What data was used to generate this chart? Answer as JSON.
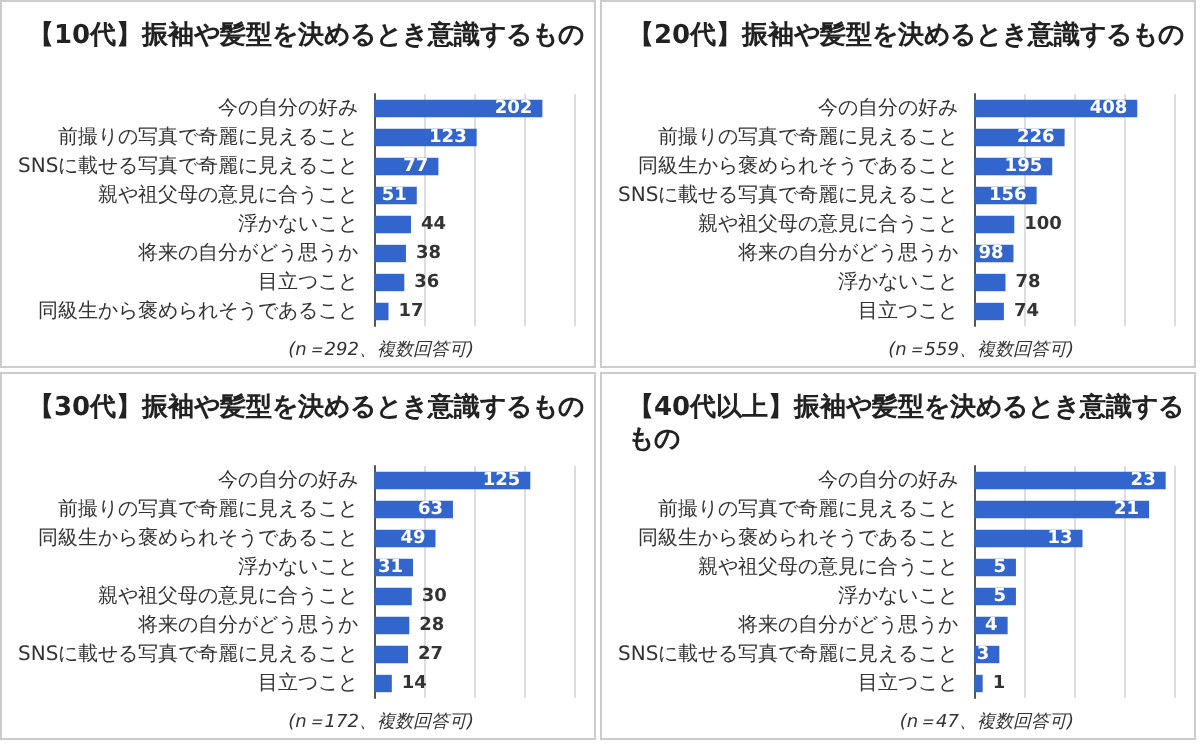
{
  "chart_data": [
    {
      "type": "bar",
      "orientation": "horizontal",
      "title": "【10代】振袖や髪型を決めるとき意識するもの",
      "categories": [
        "今の自分の好み",
        "前撮りの写真で奇麗に見えること",
        "SNSに載せる写真で奇麗に見えること",
        "親や祖父母の意見に合うこと",
        "浮かないこと",
        "将来の自分がどう思うか",
        "目立つこと",
        "同級生から褒められそうであること"
      ],
      "values": [
        202,
        123,
        77,
        51,
        44,
        38,
        36,
        17
      ],
      "color": "#3366cc",
      "xlim": [
        0,
        240
      ],
      "xticks": [
        0,
        60,
        120,
        180,
        240
      ],
      "grid": "x",
      "tick_labels": "y",
      "data_labels": true,
      "annotations": [
        "(n＝292、複数回答可)"
      ]
    },
    {
      "type": "bar",
      "orientation": "horizontal",
      "title": "【20代】振袖や髪型を決めるとき意識するもの",
      "categories": [
        "今の自分の好み",
        "前撮りの写真で奇麗に見えること",
        "同級生から褒められそうであること",
        "SNSに載せる写真で奇麗に見えること",
        "親や祖父母の意見に合うこと",
        "将来の自分がどう思うか",
        "浮かないこと",
        "目立つこと"
      ],
      "values": [
        408,
        226,
        195,
        156,
        100,
        98,
        78,
        74
      ],
      "color": "#3366cc",
      "xlim": [
        0,
        500
      ],
      "xticks": [
        0,
        125,
        250,
        375,
        500
      ],
      "grid": "x",
      "tick_labels": "y",
      "data_labels": true,
      "annotations": [
        "(n＝559、複数回答可)"
      ]
    },
    {
      "type": "bar",
      "orientation": "horizontal",
      "title": "【30代】振袖や髪型を決めるとき意識するもの",
      "categories": [
        "今の自分の好み",
        "前撮りの写真で奇麗に見えること",
        "同級生から褒められそうであること",
        "浮かないこと",
        "親や祖父母の意見に合うこと",
        "将来の自分がどう思うか",
        "SNSに載せる写真で奇麗に見えること",
        "目立つこと"
      ],
      "values": [
        125,
        63,
        49,
        31,
        30,
        28,
        27,
        14
      ],
      "color": "#3366cc",
      "xlim": [
        0,
        160
      ],
      "xticks": [
        0,
        40,
        80,
        120,
        160
      ],
      "grid": "x",
      "tick_labels": "y",
      "data_labels": true,
      "annotations": [
        "(n＝172、複数回答可)"
      ]
    },
    {
      "type": "bar",
      "orientation": "horizontal",
      "title": "【40代以上】振袖や髪型を決めるとき意識するもの",
      "categories": [
        "今の自分の好み",
        "前撮りの写真で奇麗に見えること",
        "同級生から褒められそうであること",
        "親や祖父母の意見に合うこと",
        "浮かないこと",
        "将来の自分がどう思うか",
        "SNSに載せる写真で奇麗に見えること",
        "目立つこと"
      ],
      "values": [
        23,
        21,
        13,
        5,
        5,
        4,
        3,
        1
      ],
      "color": "#3366cc",
      "xlim": [
        0,
        24
      ],
      "xticks": [
        0,
        6,
        12,
        18,
        24
      ],
      "grid": "x",
      "tick_labels": "y",
      "data_labels": true,
      "annotations": [
        "(n＝47、複数回答可)"
      ]
    }
  ]
}
